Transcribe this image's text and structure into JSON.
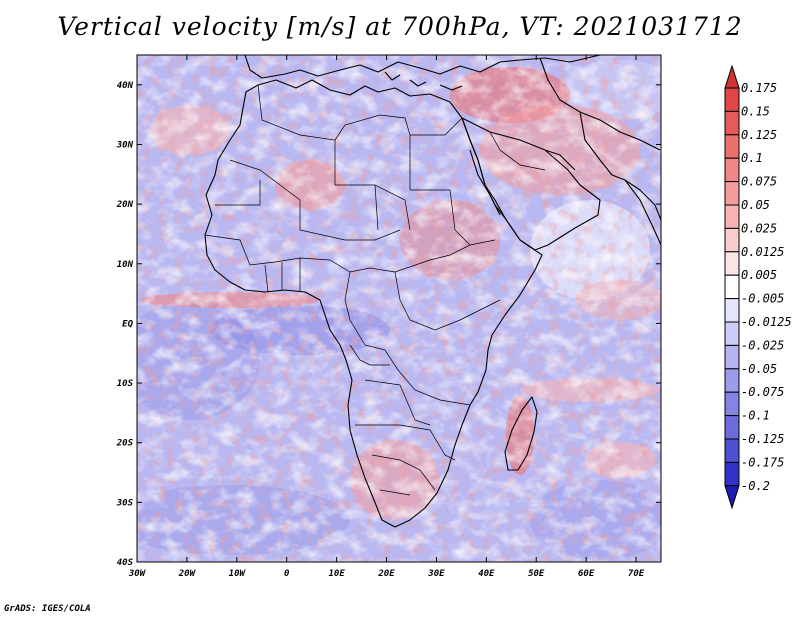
{
  "title": "Vertical velocity [m/s] at 700hPa, VT: 2021031712",
  "footer": "GrADS: IGES/COLA",
  "map": {
    "lon_range": [
      -30,
      75
    ],
    "lat_range": [
      -40,
      45
    ],
    "x_ticks": [
      "30W",
      "20W",
      "10W",
      "0",
      "10E",
      "20E",
      "30E",
      "40E",
      "50E",
      "60E",
      "70E"
    ],
    "x_tick_values": [
      -30,
      -20,
      -10,
      0,
      10,
      20,
      30,
      40,
      50,
      60,
      70
    ],
    "y_ticks": [
      "40N",
      "30N",
      "20N",
      "10N",
      "EQ",
      "10S",
      "20S",
      "30S",
      "40S"
    ],
    "y_tick_values": [
      40,
      30,
      20,
      10,
      0,
      -10,
      -20,
      -30,
      -40
    ]
  },
  "colorbar": {
    "labels": [
      "0.175",
      "0.15",
      "0.125",
      "0.1",
      "0.075",
      "0.05",
      "0.025",
      "0.0125",
      "0.005",
      "-0.005",
      "-0.0125",
      "-0.025",
      "-0.05",
      "-0.075",
      "-0.1",
      "-0.125",
      "-0.175",
      "-0.2"
    ],
    "colors": [
      "#d23232",
      "#e14646",
      "#e65a5a",
      "#eb7070",
      "#f08686",
      "#f59c9c",
      "#f8b4b4",
      "#fbcccc",
      "#fde4e4",
      "#ffffff",
      "#e4e4fb",
      "#ccccf6",
      "#b4b4f0",
      "#9c9ceb",
      "#8484e4",
      "#6c6cdc",
      "#5050d2",
      "#3232c8",
      "#1e1eb4"
    ]
  }
}
